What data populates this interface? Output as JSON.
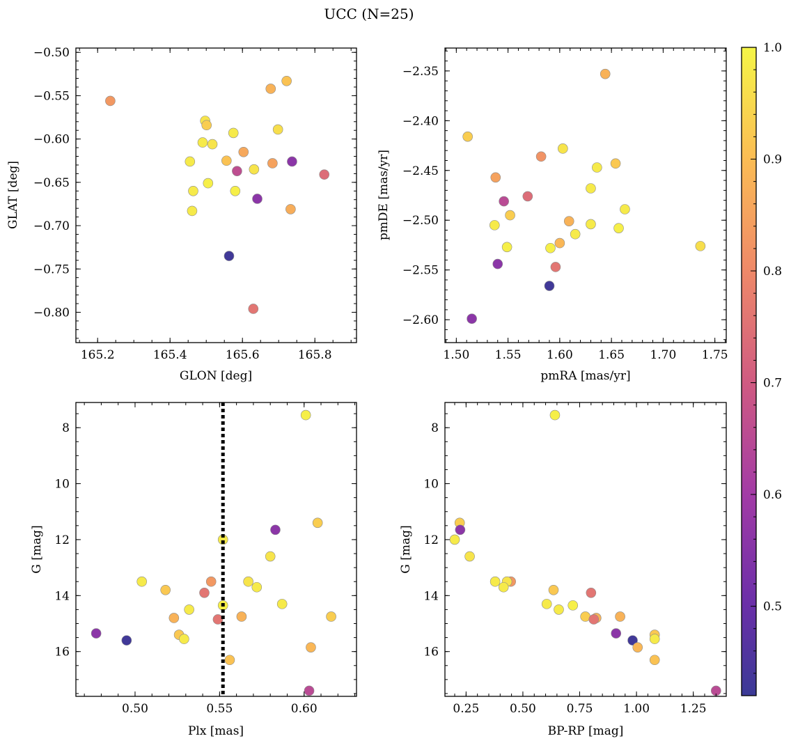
{
  "figure": {
    "title": "UCC (N=25)"
  },
  "colorbar": {
    "colormap": "plasma",
    "vmin": 0.42,
    "vmax": 1.0,
    "ticks": [
      0.5,
      0.6,
      0.7,
      0.8,
      0.9,
      1.0
    ],
    "tick_labels": [
      "0.5",
      "0.6",
      "0.7",
      "0.8",
      "0.9",
      "1.0"
    ]
  },
  "chart_data": [
    {
      "type": "scatter",
      "name": "sky",
      "xlabel": "GLON [deg]",
      "ylabel": "GLAT [deg]",
      "xlim": [
        165.14,
        165.915
      ],
      "ylim": [
        -0.835,
        -0.495
      ],
      "invert_y": false,
      "xticks": [
        165.2,
        165.4,
        165.6,
        165.8
      ],
      "xtick_labels": [
        "165.2",
        "165.4",
        "165.6",
        "165.8"
      ],
      "yticks": [
        -0.5,
        -0.55,
        -0.6,
        -0.65,
        -0.7,
        -0.75,
        -0.8
      ],
      "ytick_labels": [
        "−0.50",
        "−0.55",
        "−0.60",
        "−0.65",
        "−0.70",
        "−0.75",
        "−0.80"
      ],
      "points": [
        {
          "x": 165.235,
          "y": -0.556,
          "c": 0.83
        },
        {
          "x": 165.678,
          "y": -0.542,
          "c": 0.88
        },
        {
          "x": 165.722,
          "y": -0.533,
          "c": 0.91
        },
        {
          "x": 165.497,
          "y": -0.579,
          "c": 0.97
        },
        {
          "x": 165.501,
          "y": -0.584,
          "c": 0.93
        },
        {
          "x": 165.575,
          "y": -0.593,
          "c": 0.98
        },
        {
          "x": 165.698,
          "y": -0.589,
          "c": 0.96
        },
        {
          "x": 165.49,
          "y": -0.604,
          "c": 0.98
        },
        {
          "x": 165.517,
          "y": -0.606,
          "c": 0.97
        },
        {
          "x": 165.603,
          "y": -0.615,
          "c": 0.86
        },
        {
          "x": 165.556,
          "y": -0.625,
          "c": 0.91
        },
        {
          "x": 165.455,
          "y": -0.626,
          "c": 0.98
        },
        {
          "x": 165.632,
          "y": -0.635,
          "c": 0.97
        },
        {
          "x": 165.585,
          "y": -0.637,
          "c": 0.66
        },
        {
          "x": 165.683,
          "y": -0.628,
          "c": 0.85
        },
        {
          "x": 165.737,
          "y": -0.626,
          "c": 0.56
        },
        {
          "x": 165.826,
          "y": -0.641,
          "c": 0.74
        },
        {
          "x": 165.505,
          "y": -0.651,
          "c": 0.99
        },
        {
          "x": 165.464,
          "y": -0.66,
          "c": 0.98
        },
        {
          "x": 165.58,
          "y": -0.66,
          "c": 0.99
        },
        {
          "x": 165.641,
          "y": -0.669,
          "c": 0.56
        },
        {
          "x": 165.461,
          "y": -0.683,
          "c": 0.98
        },
        {
          "x": 165.733,
          "y": -0.681,
          "c": 0.87
        },
        {
          "x": 165.563,
          "y": -0.735,
          "c": 0.43
        },
        {
          "x": 165.63,
          "y": -0.796,
          "c": 0.76
        }
      ]
    },
    {
      "type": "scatter",
      "name": "proper-motion",
      "xlabel": "pmRA [mas/yr]",
      "ylabel": "pmDE [mas/yr]",
      "xlim": [
        1.489,
        1.761
      ],
      "ylim": [
        -2.623,
        -2.327
      ],
      "invert_y": false,
      "xticks": [
        1.5,
        1.55,
        1.6,
        1.65,
        1.7,
        1.75
      ],
      "xtick_labels": [
        "1.50",
        "1.55",
        "1.60",
        "1.65",
        "1.70",
        "1.75"
      ],
      "yticks": [
        -2.35,
        -2.4,
        -2.45,
        -2.5,
        -2.55,
        -2.6
      ],
      "ytick_labels": [
        "−2.35",
        "−2.40",
        "−2.45",
        "−2.50",
        "−2.55",
        "−2.60"
      ],
      "points": [
        {
          "x": 1.644,
          "y": -2.353,
          "c": 0.88
        },
        {
          "x": 1.511,
          "y": -2.416,
          "c": 0.93
        },
        {
          "x": 1.603,
          "y": -2.428,
          "c": 0.97
        },
        {
          "x": 1.582,
          "y": -2.436,
          "c": 0.82
        },
        {
          "x": 1.654,
          "y": -2.443,
          "c": 0.92
        },
        {
          "x": 1.636,
          "y": -2.447,
          "c": 0.98
        },
        {
          "x": 1.538,
          "y": -2.457,
          "c": 0.85
        },
        {
          "x": 1.63,
          "y": -2.468,
          "c": 0.98
        },
        {
          "x": 1.569,
          "y": -2.476,
          "c": 0.74
        },
        {
          "x": 1.546,
          "y": -2.481,
          "c": 0.65
        },
        {
          "x": 1.663,
          "y": -2.489,
          "c": 0.98
        },
        {
          "x": 1.552,
          "y": -2.495,
          "c": 0.93
        },
        {
          "x": 1.609,
          "y": -2.501,
          "c": 0.88
        },
        {
          "x": 1.63,
          "y": -2.504,
          "c": 0.98
        },
        {
          "x": 1.537,
          "y": -2.505,
          "c": 0.98
        },
        {
          "x": 1.657,
          "y": -2.508,
          "c": 0.99
        },
        {
          "x": 1.615,
          "y": -2.514,
          "c": 0.98
        },
        {
          "x": 1.6,
          "y": -2.523,
          "c": 0.89
        },
        {
          "x": 1.549,
          "y": -2.527,
          "c": 0.99
        },
        {
          "x": 1.736,
          "y": -2.526,
          "c": 0.96
        },
        {
          "x": 1.591,
          "y": -2.528,
          "c": 0.99
        },
        {
          "x": 1.54,
          "y": -2.544,
          "c": 0.56
        },
        {
          "x": 1.596,
          "y": -2.547,
          "c": 0.76
        },
        {
          "x": 1.59,
          "y": -2.566,
          "c": 0.43
        },
        {
          "x": 1.515,
          "y": -2.599,
          "c": 0.56
        }
      ]
    },
    {
      "type": "scatter",
      "name": "parallax-magnitude",
      "xlabel": "Plx [mas]",
      "ylabel": "G [mag]",
      "xlim": [
        0.465,
        0.631
      ],
      "ylim": [
        17.6,
        7.1
      ],
      "invert_y": true,
      "vline": 0.552,
      "xticks": [
        0.5,
        0.55,
        0.6
      ],
      "xtick_labels": [
        "0.50",
        "0.55",
        "0.60"
      ],
      "yticks": [
        8,
        10,
        12,
        14,
        16
      ],
      "ytick_labels": [
        "8",
        "10",
        "12",
        "14",
        "16"
      ],
      "points": [
        {
          "x": 0.601,
          "y": 7.55,
          "c": 0.99
        },
        {
          "x": 0.608,
          "y": 11.4,
          "c": 0.93
        },
        {
          "x": 0.583,
          "y": 11.65,
          "c": 0.56
        },
        {
          "x": 0.552,
          "y": 12.0,
          "c": 0.98
        },
        {
          "x": 0.58,
          "y": 12.6,
          "c": 0.97
        },
        {
          "x": 0.504,
          "y": 13.5,
          "c": 0.98
        },
        {
          "x": 0.545,
          "y": 13.5,
          "c": 0.83
        },
        {
          "x": 0.567,
          "y": 13.5,
          "c": 0.97
        },
        {
          "x": 0.572,
          "y": 13.7,
          "c": 0.98
        },
        {
          "x": 0.518,
          "y": 13.8,
          "c": 0.92
        },
        {
          "x": 0.541,
          "y": 13.9,
          "c": 0.76
        },
        {
          "x": 0.587,
          "y": 14.3,
          "c": 0.98
        },
        {
          "x": 0.552,
          "y": 14.35,
          "c": 0.99
        },
        {
          "x": 0.532,
          "y": 14.5,
          "c": 0.98
        },
        {
          "x": 0.616,
          "y": 14.75,
          "c": 0.93
        },
        {
          "x": 0.563,
          "y": 14.75,
          "c": 0.88
        },
        {
          "x": 0.523,
          "y": 14.8,
          "c": 0.88
        },
        {
          "x": 0.549,
          "y": 14.85,
          "c": 0.76
        },
        {
          "x": 0.526,
          "y": 15.4,
          "c": 0.92
        },
        {
          "x": 0.529,
          "y": 15.55,
          "c": 0.98
        },
        {
          "x": 0.477,
          "y": 15.35,
          "c": 0.56
        },
        {
          "x": 0.495,
          "y": 15.6,
          "c": 0.43
        },
        {
          "x": 0.604,
          "y": 15.85,
          "c": 0.89
        },
        {
          "x": 0.556,
          "y": 16.3,
          "c": 0.91
        },
        {
          "x": 0.603,
          "y": 17.4,
          "c": 0.65
        }
      ]
    },
    {
      "type": "scatter",
      "name": "color-magnitude",
      "xlabel": "BP-RP [mag]",
      "ylabel": "G [mag]",
      "xlim": [
        0.157,
        1.395
      ],
      "ylim": [
        17.6,
        7.1
      ],
      "invert_y": true,
      "xticks": [
        0.25,
        0.5,
        0.75,
        1.0,
        1.25
      ],
      "xtick_labels": [
        "0.25",
        "0.50",
        "0.75",
        "1.00",
        "1.25"
      ],
      "yticks": [
        8,
        10,
        12,
        14,
        16
      ],
      "ytick_labels": [
        "8",
        "10",
        "12",
        "14",
        "16"
      ],
      "points": [
        {
          "x": 0.641,
          "y": 7.55,
          "c": 0.99
        },
        {
          "x": 0.222,
          "y": 11.4,
          "c": 0.93
        },
        {
          "x": 0.224,
          "y": 11.65,
          "c": 0.56
        },
        {
          "x": 0.2,
          "y": 12.0,
          "c": 0.98
        },
        {
          "x": 0.266,
          "y": 12.6,
          "c": 0.97
        },
        {
          "x": 0.378,
          "y": 13.5,
          "c": 0.98
        },
        {
          "x": 0.447,
          "y": 13.5,
          "c": 0.83
        },
        {
          "x": 0.43,
          "y": 13.5,
          "c": 0.97
        },
        {
          "x": 0.415,
          "y": 13.7,
          "c": 0.98
        },
        {
          "x": 0.635,
          "y": 13.8,
          "c": 0.92
        },
        {
          "x": 0.8,
          "y": 13.9,
          "c": 0.76
        },
        {
          "x": 0.605,
          "y": 14.3,
          "c": 0.98
        },
        {
          "x": 0.72,
          "y": 14.35,
          "c": 0.99
        },
        {
          "x": 0.658,
          "y": 14.5,
          "c": 0.98
        },
        {
          "x": 0.775,
          "y": 14.75,
          "c": 0.93
        },
        {
          "x": 0.928,
          "y": 14.75,
          "c": 0.88
        },
        {
          "x": 0.823,
          "y": 14.8,
          "c": 0.88
        },
        {
          "x": 0.812,
          "y": 14.85,
          "c": 0.76
        },
        {
          "x": 1.08,
          "y": 15.4,
          "c": 0.92
        },
        {
          "x": 1.08,
          "y": 15.55,
          "c": 0.98
        },
        {
          "x": 0.91,
          "y": 15.35,
          "c": 0.56
        },
        {
          "x": 0.983,
          "y": 15.6,
          "c": 0.43
        },
        {
          "x": 1.005,
          "y": 15.85,
          "c": 0.89
        },
        {
          "x": 1.08,
          "y": 16.3,
          "c": 0.91
        },
        {
          "x": 1.35,
          "y": 17.4,
          "c": 0.65
        }
      ]
    }
  ]
}
